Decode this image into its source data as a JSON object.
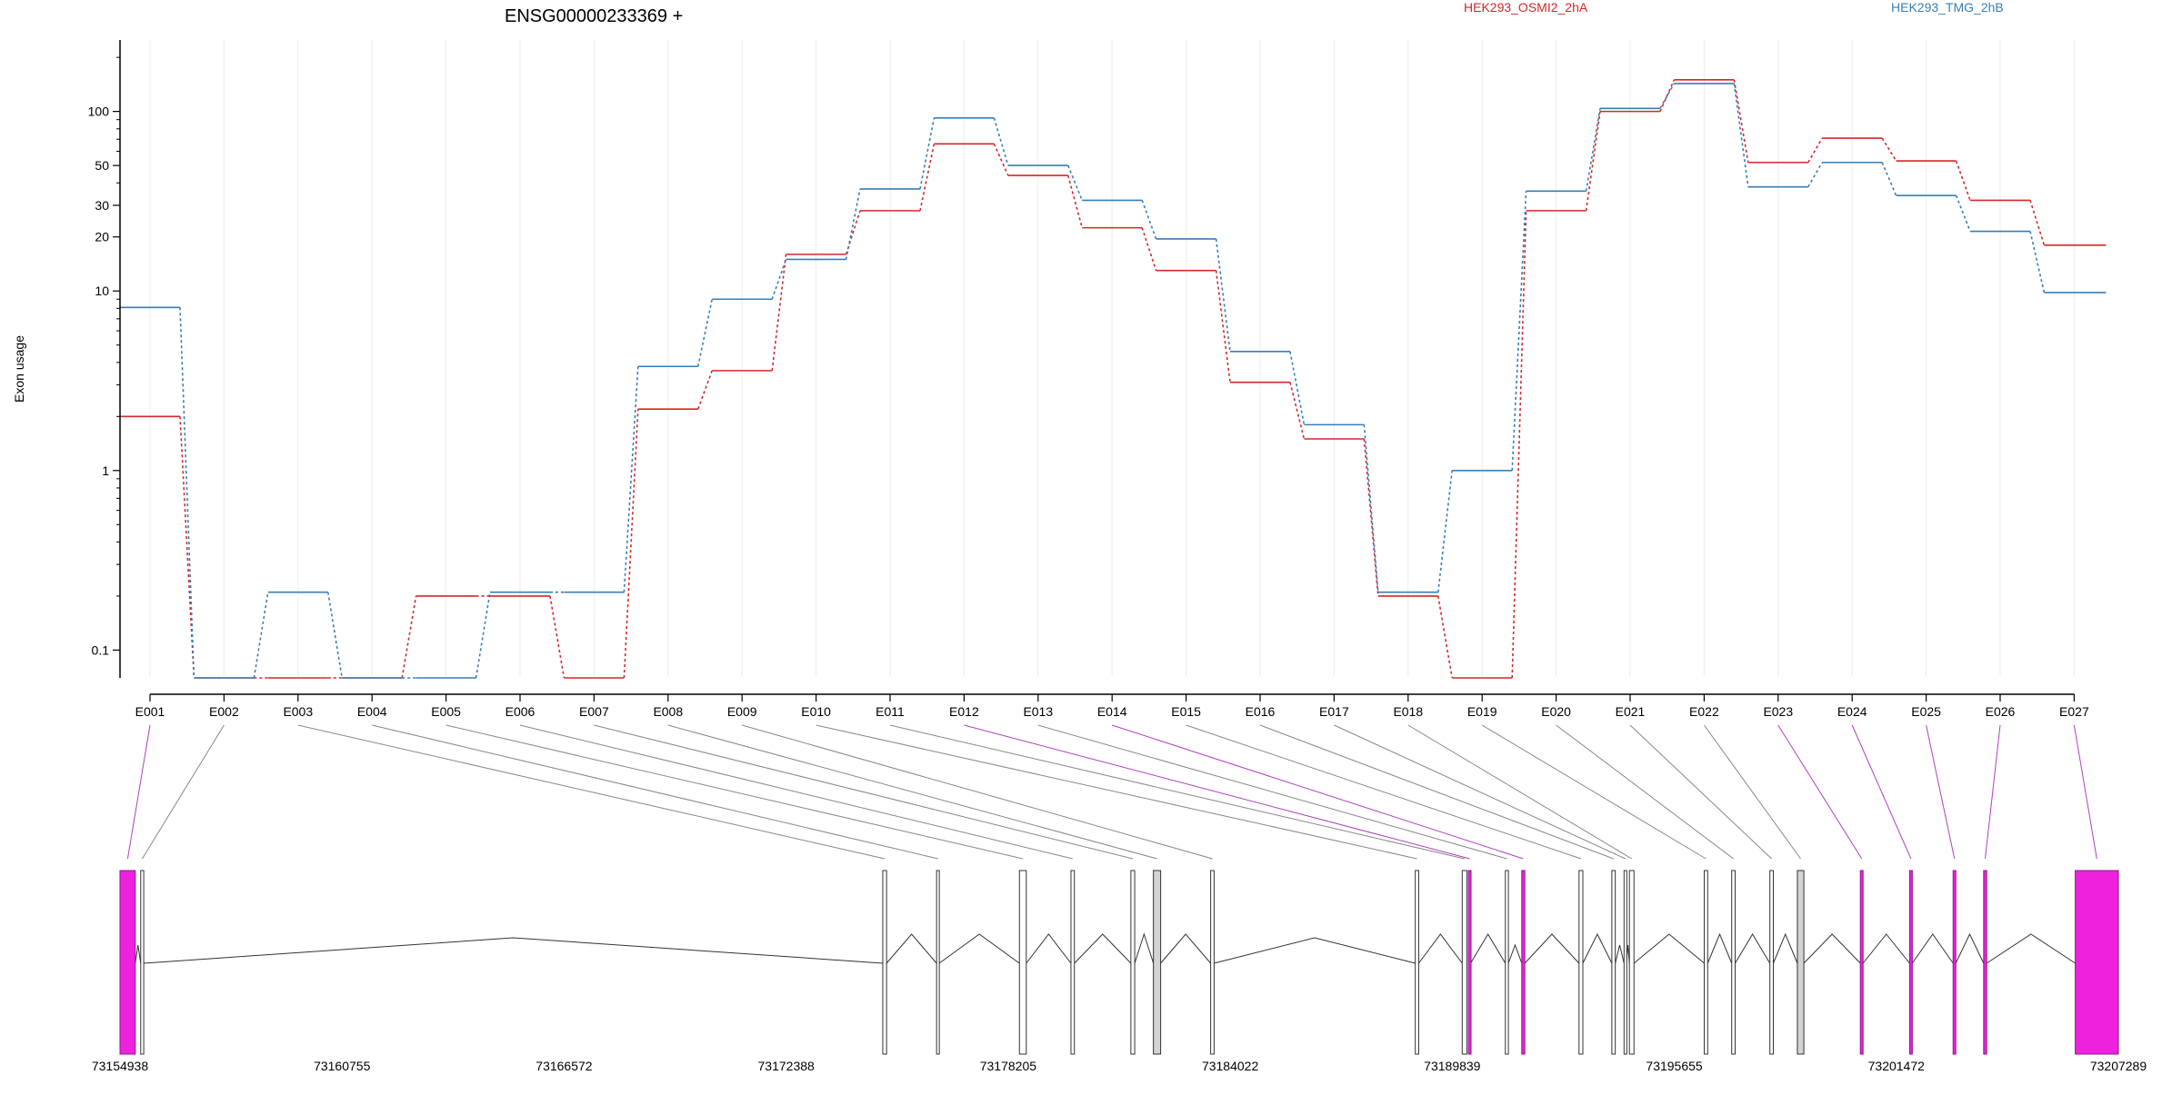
{
  "chart_data": {
    "type": "line",
    "title": "ENSG00000233369 +",
    "ylabel": "Exon usage",
    "xlabel": "",
    "yscale": "log",
    "ylim": [
      0.07,
      250
    ],
    "yticks": [
      0.1,
      1,
      10,
      20,
      30,
      50,
      100
    ],
    "ytick_labels": [
      "0.1",
      "1",
      "10",
      "20",
      "30",
      "50",
      "100"
    ],
    "grid": "vertical",
    "legend_placement": "top",
    "categories": [
      "E001",
      "E002",
      "E003",
      "E004",
      "E005",
      "E006",
      "E007",
      "E008",
      "E009",
      "E010",
      "E011",
      "E012",
      "E013",
      "E014",
      "E015",
      "E016",
      "E017",
      "E018",
      "E019",
      "E020",
      "E021",
      "E022",
      "E023",
      "E024",
      "E025",
      "E026",
      "E027"
    ],
    "series": [
      {
        "name": "HEK293_OSMI2_2hA",
        "color": "#d62728",
        "values": [
          2.0,
          0.07,
          0.07,
          0.07,
          0.2,
          0.2,
          0.07,
          2.2,
          3.6,
          16,
          28,
          66,
          44,
          22.5,
          13,
          3.1,
          1.5,
          0.2,
          0.07,
          28,
          100,
          150,
          52,
          71,
          53,
          32,
          18
        ]
      },
      {
        "name": "HEK293_TMG_2hB",
        "color": "#377eb8",
        "values": [
          8.1,
          0.07,
          0.21,
          0.07,
          0.07,
          0.21,
          0.21,
          3.8,
          9.0,
          15,
          37,
          92,
          50,
          32,
          19.5,
          4.6,
          1.8,
          0.21,
          1.0,
          36,
          104,
          143,
          38,
          52,
          34,
          21.5,
          9.8
        ]
      }
    ],
    "genomic_axis": {
      "start": 73154938,
      "end": 73207289,
      "tick_labels": [
        "73154938",
        "73160755",
        "73166572",
        "73172388",
        "73178205",
        "73184022",
        "73189839",
        "73195655",
        "73201472",
        "73207289"
      ],
      "exons": [
        {
          "id": "E001",
          "start": 73154938,
          "end": 73155338,
          "color": "#ee22dd"
        },
        {
          "id": "E002",
          "start": 73155480,
          "end": 73155560,
          "color": "#ffffff"
        },
        {
          "id": "E003",
          "start": 73174920,
          "end": 73175020,
          "color": "#ffffff"
        },
        {
          "id": "E004",
          "start": 73176330,
          "end": 73176400,
          "color": "#ffffff"
        },
        {
          "id": "E005",
          "start": 73178500,
          "end": 73178680,
          "color": "#ffffff"
        },
        {
          "id": "E006",
          "start": 73179850,
          "end": 73179940,
          "color": "#ffffff"
        },
        {
          "id": "E007",
          "start": 73181420,
          "end": 73181520,
          "color": "#ffffff"
        },
        {
          "id": "E008",
          "start": 73182010,
          "end": 73182200,
          "color": "#d3d3d3"
        },
        {
          "id": "E009",
          "start": 73183510,
          "end": 73183600,
          "color": "#ffffff"
        },
        {
          "id": "E010",
          "start": 73188870,
          "end": 73188960,
          "color": "#ffffff"
        },
        {
          "id": "E011",
          "start": 73190100,
          "end": 73190220,
          "color": "#ffffff"
        },
        {
          "id": "E012",
          "start": 73190260,
          "end": 73190320,
          "color": "#ee22dd"
        },
        {
          "id": "E013",
          "start": 73191230,
          "end": 73191310,
          "color": "#ffffff"
        },
        {
          "id": "E014",
          "start": 73191660,
          "end": 73191740,
          "color": "#ee22dd"
        },
        {
          "id": "E015",
          "start": 73193160,
          "end": 73193260,
          "color": "#ffffff"
        },
        {
          "id": "E016",
          "start": 73194020,
          "end": 73194110,
          "color": "#ffffff"
        },
        {
          "id": "E017",
          "start": 73194340,
          "end": 73194400,
          "color": "#ffffff"
        },
        {
          "id": "E018",
          "start": 73194480,
          "end": 73194600,
          "color": "#ffffff"
        },
        {
          "id": "E019",
          "start": 73196440,
          "end": 73196530,
          "color": "#ffffff"
        },
        {
          "id": "E020",
          "start": 73197160,
          "end": 73197250,
          "color": "#ffffff"
        },
        {
          "id": "E021",
          "start": 73198160,
          "end": 73198250,
          "color": "#ffffff"
        },
        {
          "id": "E022",
          "start": 73198880,
          "end": 73199050,
          "color": "#d3d3d3"
        },
        {
          "id": "E023",
          "start": 73200530,
          "end": 73200600,
          "color": "#ee22dd"
        },
        {
          "id": "E024",
          "start": 73201820,
          "end": 73201890,
          "color": "#ee22dd"
        },
        {
          "id": "E025",
          "start": 73202960,
          "end": 73203030,
          "color": "#ee22dd"
        },
        {
          "id": "E026",
          "start": 73203760,
          "end": 73203840,
          "color": "#ee22dd"
        },
        {
          "id": "E027",
          "start": 73206160,
          "end": 73207289,
          "color": "#ee22dd"
        }
      ]
    }
  }
}
